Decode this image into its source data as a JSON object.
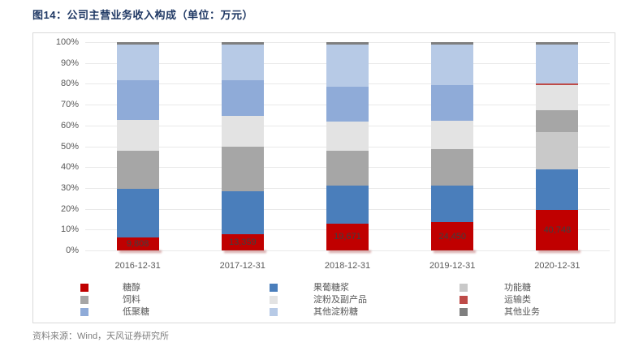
{
  "title": "图14：公司主营业务收入构成（单位：万元）",
  "source_note": "资料来源：Wind，天风证券研究所",
  "palette": {
    "title_color": "#1F3864",
    "axis_text_color": "#595959",
    "gridline_color": "#E9E9E9",
    "box_border_color": "#D9D9D9",
    "bar_label_color": "#3F3F3F"
  },
  "chart_data": {
    "type": "bar",
    "subtype": "100%-stacked-column",
    "title": "公司主营业务收入构成（单位：万元）",
    "categories": [
      "2016-12-31",
      "2017-12-31",
      "2018-12-31",
      "2019-12-31",
      "2020-12-31"
    ],
    "series": [
      {
        "name": "糖醇",
        "color": "#C00000",
        "values": [
          6.4,
          7.8,
          12.9,
          13.6,
          19.4
        ]
      },
      {
        "name": "果葡糖浆",
        "color": "#4A7EBB",
        "values": [
          23.0,
          20.7,
          18.2,
          17.5,
          19.5
        ]
      },
      {
        "name": "功能糖",
        "color": "#C9C9C9",
        "values": [
          0,
          0,
          0,
          0,
          17.8
        ]
      },
      {
        "name": "饲料",
        "color": "#A6A6A6",
        "values": [
          18.6,
          21.5,
          16.9,
          17.6,
          10.5
        ]
      },
      {
        "name": "淀粉及副产品",
        "color": "#E3E3E3",
        "values": [
          14.6,
          14.5,
          13.7,
          13.7,
          12.1
        ]
      },
      {
        "name": "运输类",
        "color": "#BE4B48",
        "values": [
          0,
          0,
          0,
          0,
          1.0
        ]
      },
      {
        "name": "低聚糖",
        "color": "#8FABD8",
        "values": [
          19.0,
          17.4,
          16.9,
          16.9,
          0
        ]
      },
      {
        "name": "其他淀粉糖",
        "color": "#B7CAE6",
        "values": [
          17.2,
          16.9,
          20.2,
          19.7,
          18.7
        ]
      },
      {
        "name": "其他业务",
        "color": "#7F7F7F",
        "values": [
          1.2,
          1.2,
          1.2,
          1.0,
          1.0
        ]
      }
    ],
    "bar_labels": {
      "series": "糖醇",
      "values": [
        "9,808",
        "13,359",
        "19,671",
        "24,450",
        "40,748"
      ]
    },
    "y_axis": {
      "ticks": [
        "0%",
        "10%",
        "20%",
        "30%",
        "40%",
        "50%",
        "60%",
        "70%",
        "80%",
        "90%",
        "100%"
      ],
      "min": 0,
      "max": 100,
      "grid": true
    },
    "legend": {
      "position": "bottom",
      "columns": 3,
      "order_row_major": [
        "糖醇",
        "果葡糖浆",
        "功能糖",
        "饲料",
        "淀粉及副产品",
        "运输类",
        "低聚糖",
        "其他淀粉糖",
        "其他业务"
      ]
    }
  }
}
